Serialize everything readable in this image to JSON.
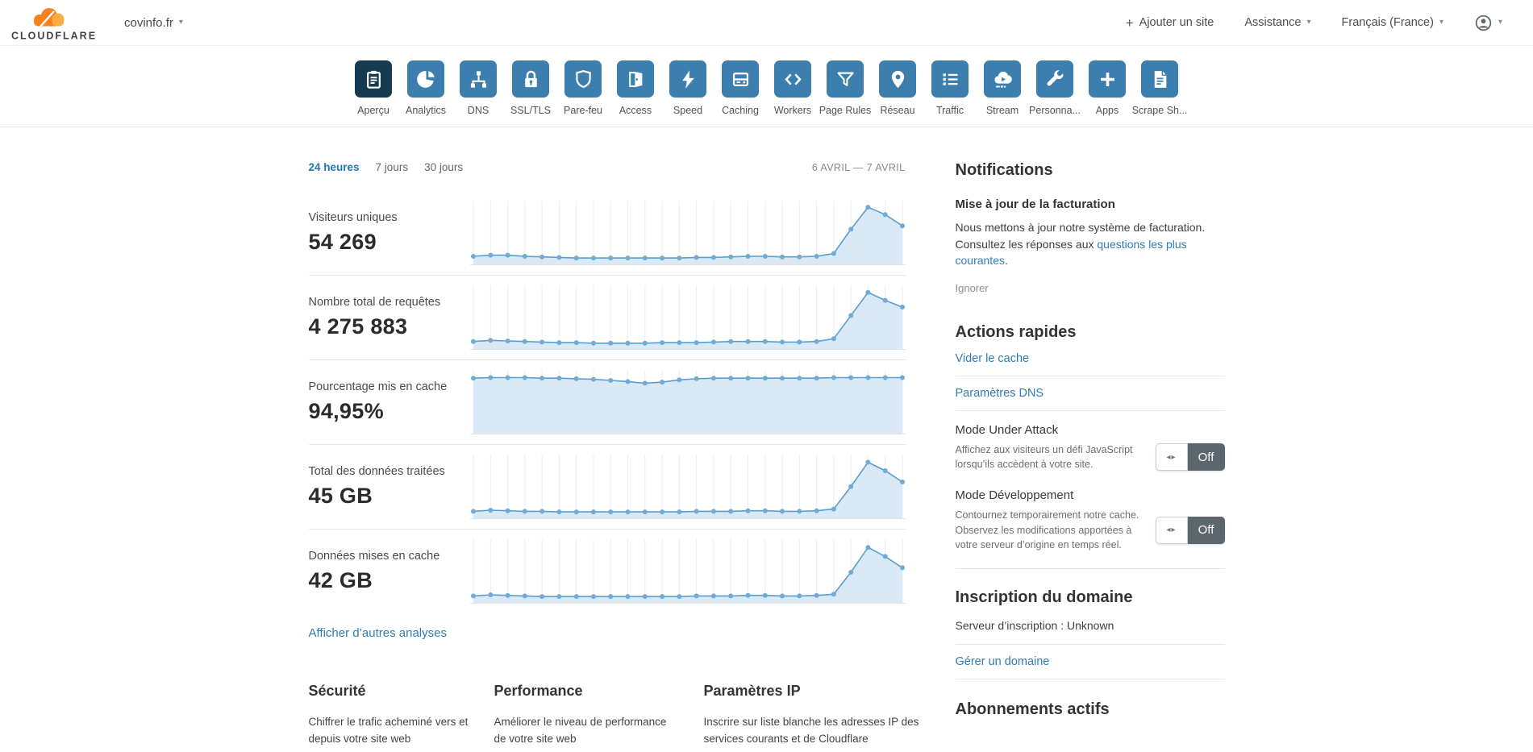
{
  "topbar": {
    "brand": "CLOUDFLARE",
    "site": "covinfo.fr",
    "add_site_label": "Ajouter un site",
    "assistance_label": "Assistance",
    "language_label": "Français (France)"
  },
  "nav": {
    "items": [
      {
        "label": "Aperçu",
        "icon": "clipboard-icon",
        "active": true
      },
      {
        "label": "Analytics",
        "icon": "pie-chart-icon",
        "active": false
      },
      {
        "label": "DNS",
        "icon": "sitemap-icon",
        "active": false
      },
      {
        "label": "SSL/TLS",
        "icon": "padlock-icon",
        "active": false
      },
      {
        "label": "Pare-feu",
        "icon": "shield-icon",
        "active": false
      },
      {
        "label": "Access",
        "icon": "door-icon",
        "active": false
      },
      {
        "label": "Speed",
        "icon": "lightning-icon",
        "active": false
      },
      {
        "label": "Caching",
        "icon": "server-icon",
        "active": false
      },
      {
        "label": "Workers",
        "icon": "code-brackets-icon",
        "active": false
      },
      {
        "label": "Page Rules",
        "icon": "funnel-icon",
        "active": false
      },
      {
        "label": "Réseau",
        "icon": "map-pin-icon",
        "active": false
      },
      {
        "label": "Traffic",
        "icon": "list-icon",
        "active": false
      },
      {
        "label": "Stream",
        "icon": "cloud-play-icon",
        "active": false
      },
      {
        "label": "Personna...",
        "icon": "wrench-icon",
        "active": false
      },
      {
        "label": "Apps",
        "icon": "plus-icon",
        "active": false
      },
      {
        "label": "Scrape Sh...",
        "icon": "document-icon",
        "active": false
      }
    ]
  },
  "analytics": {
    "tabs": [
      {
        "label": "24 heures",
        "active": true
      },
      {
        "label": "7 jours",
        "active": false
      },
      {
        "label": "30 jours",
        "active": false
      }
    ],
    "date_range": "6 AVRIL — 7 AVRIL",
    "more_link": "Afficher d’autres analyses"
  },
  "chart_data": [
    {
      "type": "area",
      "metric": "Visiteurs uniques",
      "value": "54 269",
      "y_percent": [
        10,
        12,
        12,
        10,
        9,
        8,
        7,
        7,
        7,
        7,
        7,
        7,
        7,
        8,
        8,
        9,
        10,
        10,
        9,
        9,
        10,
        15,
        58,
        97,
        84,
        64
      ]
    },
    {
      "type": "area",
      "metric": "Nombre total de requêtes",
      "value": "4 275 883",
      "y_percent": [
        9,
        11,
        10,
        9,
        8,
        7,
        7,
        6,
        6,
        6,
        6,
        7,
        7,
        7,
        8,
        9,
        9,
        9,
        8,
        8,
        9,
        14,
        55,
        96,
        82,
        70
      ]
    },
    {
      "type": "area",
      "metric": "Pourcentage mis en cache",
      "value": "94,95%",
      "y_percent": [
        94,
        95,
        95,
        95,
        94,
        94,
        93,
        92,
        90,
        88,
        85,
        87,
        91,
        93,
        94,
        94,
        94,
        94,
        94,
        94,
        94,
        95,
        95,
        95,
        95,
        95
      ]
    },
    {
      "type": "area",
      "metric": "Total des données traitées",
      "value": "45 GB",
      "y_percent": [
        8,
        10,
        9,
        8,
        8,
        7,
        7,
        7,
        7,
        7,
        7,
        7,
        7,
        8,
        8,
        8,
        9,
        9,
        8,
        8,
        9,
        12,
        52,
        95,
        80,
        60
      ]
    },
    {
      "type": "area",
      "metric": "Données mises en cache",
      "value": "42 GB",
      "y_percent": [
        8,
        10,
        9,
        8,
        7,
        7,
        7,
        7,
        7,
        7,
        7,
        7,
        7,
        8,
        8,
        8,
        9,
        9,
        8,
        8,
        9,
        11,
        50,
        94,
        78,
        58
      ]
    }
  ],
  "sections": {
    "columns": [
      {
        "title": "Sécurité",
        "body": "Chiffrer le trafic acheminé vers et depuis votre site web"
      },
      {
        "title": "Performance",
        "body": "Améliorer le niveau de performance de votre site web"
      },
      {
        "title": "Paramètres IP",
        "body": "Inscrire sur liste blanche les adresses IP des services courants et de Cloudflare"
      }
    ]
  },
  "sidebar": {
    "notifications": {
      "title": "Notifications",
      "item_title": "Mise à jour de la facturation",
      "body_before": "Nous mettons à jour notre système de facturation. Consultez les réponses aux ",
      "link_text": "questions les plus courantes",
      "body_after": ".",
      "dismiss_label": "Ignorer"
    },
    "quick_actions": {
      "title": "Actions rapides",
      "links": [
        "Vider le cache",
        "Paramètres DNS"
      ],
      "toggles": [
        {
          "title": "Mode Under Attack",
          "desc": "Affichez aux visiteurs un défi JavaScript lorsqu’ils accèdent à votre site.",
          "state": "Off"
        },
        {
          "title": "Mode Développement",
          "desc": "Contournez temporairement notre cache. Observez les modifications apportées à votre serveur d’origine en temps réel.",
          "state": "Off"
        }
      ]
    },
    "domain": {
      "title": "Inscription du domaine",
      "registrar": "Serveur d’inscription : Unknown",
      "manage_link": "Gérer un domaine"
    },
    "subscriptions": {
      "title": "Abonnements actifs"
    }
  },
  "colors": {
    "nav_tile": "#3c7eae",
    "nav_tile_active": "#163a50",
    "link_blue": "#2e7cb5",
    "chart_line": "#5a9ecd",
    "chart_dot": "#6fabd7",
    "chart_fill": "#d9e9f6",
    "brand_orange": "#f6821f",
    "brand_orange_light": "#fbad41",
    "toggle_gray": "#5c666d"
  }
}
